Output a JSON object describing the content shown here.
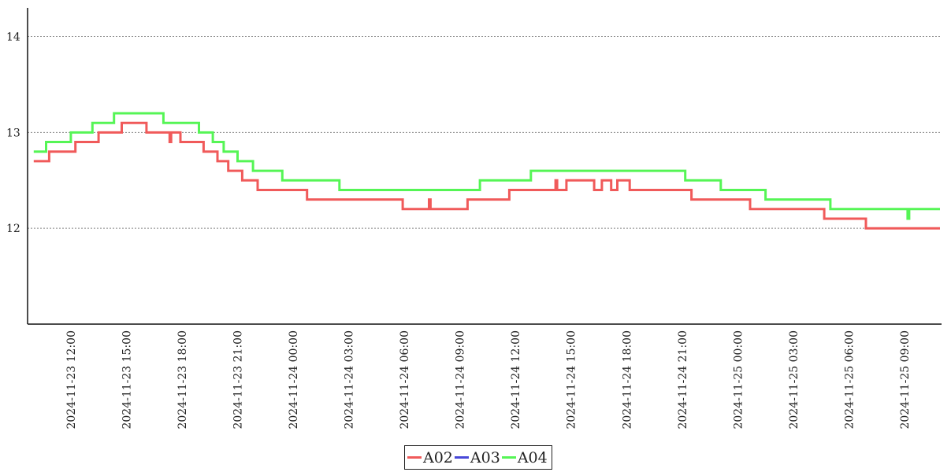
{
  "chart_data": {
    "type": "line",
    "title": "",
    "xlabel": "",
    "ylabel": "",
    "ylim": [
      11,
      14.3
    ],
    "yticks": [
      12,
      13,
      14
    ],
    "x_range": [
      "2024-11-23 09:40",
      "2024-11-25 11:00"
    ],
    "x_ticks": [
      "2024-11-23 12:00",
      "2024-11-23 15:00",
      "2024-11-23 18:00",
      "2024-11-23 21:00",
      "2024-11-24 00:00",
      "2024-11-24 03:00",
      "2024-11-24 06:00",
      "2024-11-24 09:00",
      "2024-11-24 12:00",
      "2024-11-24 15:00",
      "2024-11-24 18:00",
      "2024-11-24 21:00",
      "2024-11-25 00:00",
      "2024-11-25 03:00",
      "2024-11-25 06:00",
      "2024-11-25 09:00"
    ],
    "grid": "horizontal dotted",
    "legend_position": "bottom-center",
    "series": [
      {
        "name": "A02",
        "color": "#f05a5a",
        "points": [
          [
            "2024-11-23 10:00",
            12.7
          ],
          [
            "2024-11-23 10:50",
            12.8
          ],
          [
            "2024-11-23 12:15",
            12.9
          ],
          [
            "2024-11-23 13:30",
            13.0
          ],
          [
            "2024-11-23 14:45",
            13.1
          ],
          [
            "2024-11-23 16:05",
            13.0
          ],
          [
            "2024-11-23 17:20",
            12.9
          ],
          [
            "2024-11-23 17:25",
            13.0
          ],
          [
            "2024-11-23 17:55",
            12.9
          ],
          [
            "2024-11-23 19:10",
            12.8
          ],
          [
            "2024-11-23 19:55",
            12.7
          ],
          [
            "2024-11-23 20:30",
            12.6
          ],
          [
            "2024-11-23 21:15",
            12.5
          ],
          [
            "2024-11-23 22:05",
            12.4
          ],
          [
            "2024-11-24 00:45",
            12.3
          ],
          [
            "2024-11-24 05:55",
            12.2
          ],
          [
            "2024-11-24 06:30",
            12.2
          ],
          [
            "2024-11-24 07:20",
            12.3
          ],
          [
            "2024-11-24 07:25",
            12.2
          ],
          [
            "2024-11-24 09:25",
            12.3
          ],
          [
            "2024-11-24 11:40",
            12.4
          ],
          [
            "2024-11-24 14:10",
            12.5
          ],
          [
            "2024-11-24 14:15",
            12.4
          ],
          [
            "2024-11-24 14:45",
            12.5
          ],
          [
            "2024-11-24 16:15",
            12.4
          ],
          [
            "2024-11-24 16:40",
            12.5
          ],
          [
            "2024-11-24 17:10",
            12.4
          ],
          [
            "2024-11-24 17:30",
            12.5
          ],
          [
            "2024-11-24 18:10",
            12.4
          ],
          [
            "2024-11-24 21:30",
            12.3
          ],
          [
            "2024-11-25 00:40",
            12.2
          ],
          [
            "2024-11-25 04:40",
            12.1
          ],
          [
            "2024-11-25 06:55",
            12.0
          ],
          [
            "2024-11-25 10:55",
            12.0
          ]
        ]
      },
      {
        "name": "A03",
        "color": "#4848d8",
        "points": []
      },
      {
        "name": "A04",
        "color": "#55f555",
        "points": [
          [
            "2024-11-23 10:00",
            12.8
          ],
          [
            "2024-11-23 10:40",
            12.9
          ],
          [
            "2024-11-23 12:00",
            13.0
          ],
          [
            "2024-11-23 13:10",
            13.1
          ],
          [
            "2024-11-23 14:20",
            13.2
          ],
          [
            "2024-11-23 17:00",
            13.1
          ],
          [
            "2024-11-23 18:55",
            13.0
          ],
          [
            "2024-11-23 19:40",
            12.9
          ],
          [
            "2024-11-23 20:15",
            12.8
          ],
          [
            "2024-11-23 21:00",
            12.7
          ],
          [
            "2024-11-23 21:50",
            12.6
          ],
          [
            "2024-11-23 23:25",
            12.5
          ],
          [
            "2024-11-24 02:30",
            12.4
          ],
          [
            "2024-11-24 10:05",
            12.5
          ],
          [
            "2024-11-24 12:50",
            12.6
          ],
          [
            "2024-11-24 21:10",
            12.5
          ],
          [
            "2024-11-24 23:05",
            12.4
          ],
          [
            "2024-11-25 01:30",
            12.3
          ],
          [
            "2024-11-25 05:00",
            12.2
          ],
          [
            "2024-11-25 09:10",
            12.1
          ],
          [
            "2024-11-25 09:15",
            12.2
          ],
          [
            "2024-11-25 10:55",
            12.2
          ]
        ]
      }
    ]
  }
}
